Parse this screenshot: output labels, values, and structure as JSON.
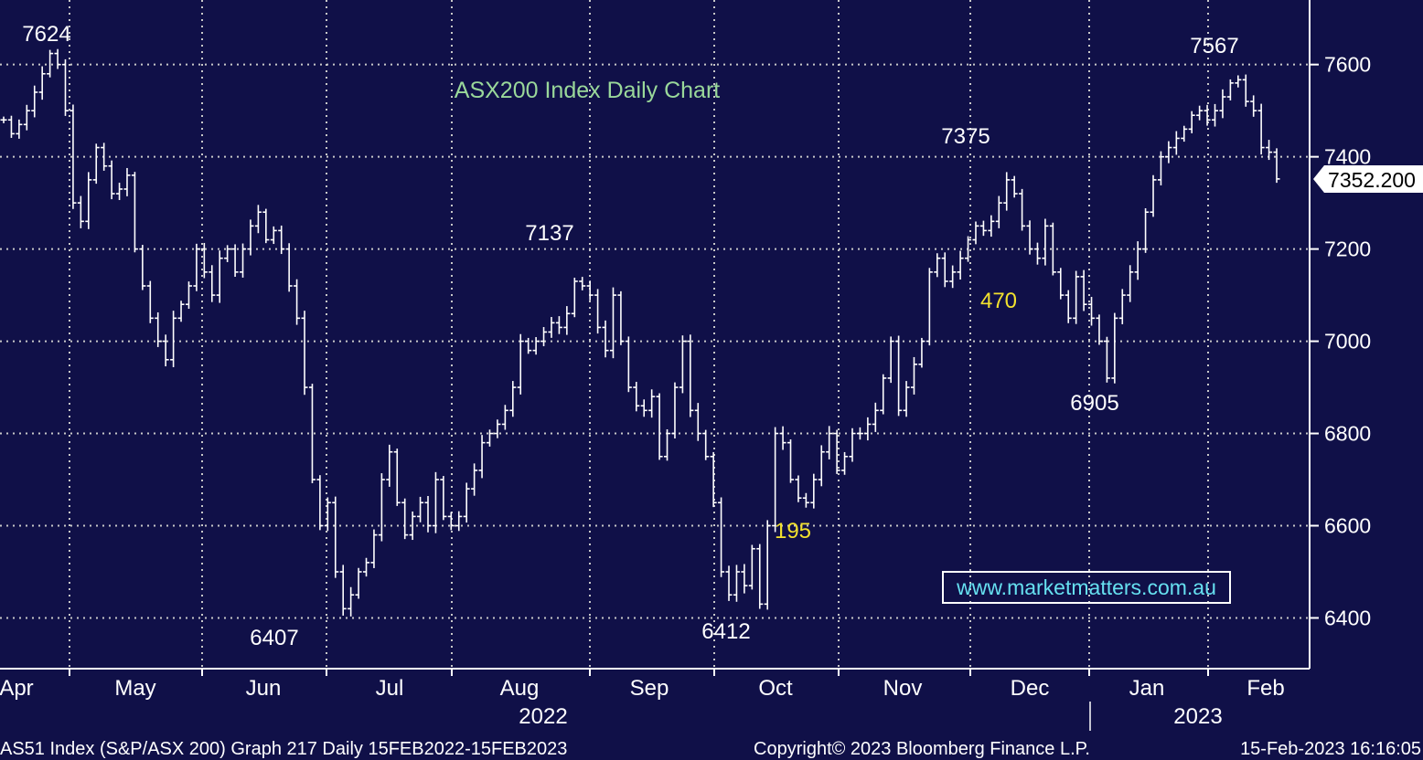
{
  "chart_data": {
    "type": "bar",
    "subtype": "ohlc",
    "title": "ASX200 Index Daily Chart",
    "y_axis": {
      "side": "right",
      "ticks": [
        6400,
        6600,
        6800,
        7000,
        7200,
        7400,
        7600
      ],
      "range": [
        6290,
        7740
      ]
    },
    "x_axis": {
      "months": [
        "Apr",
        "May",
        "Jun",
        "Jul",
        "Aug",
        "Sep",
        "Oct",
        "Nov",
        "Dec",
        "Jan",
        "Feb"
      ],
      "years": [
        "2022",
        "2023"
      ]
    },
    "last_price": "7352.200",
    "annotations": [
      {
        "text": "7624",
        "kind": "peak"
      },
      {
        "text": "6407",
        "kind": "trough"
      },
      {
        "text": "7137",
        "kind": "peak"
      },
      {
        "text": "6412",
        "kind": "trough"
      },
      {
        "text": "195",
        "kind": "move"
      },
      {
        "text": "7375",
        "kind": "peak"
      },
      {
        "text": "470",
        "kind": "move"
      },
      {
        "text": "6905",
        "kind": "trough"
      },
      {
        "text": "7567",
        "kind": "peak"
      }
    ],
    "grid": true,
    "series_color": "#ffffff",
    "closes": [
      7480,
      7450,
      7470,
      7500,
      7540,
      7580,
      7624,
      7600,
      7500,
      7300,
      7260,
      7350,
      7420,
      7380,
      7320,
      7330,
      7360,
      7200,
      7120,
      7050,
      7000,
      6960,
      7050,
      7080,
      7120,
      7200,
      7150,
      7100,
      7180,
      7200,
      7150,
      7200,
      7250,
      7280,
      7220,
      7240,
      7200,
      7120,
      7050,
      6900,
      6700,
      6600,
      6650,
      6500,
      6420,
      6450,
      6500,
      6520,
      6580,
      6700,
      6760,
      6650,
      6580,
      6620,
      6650,
      6600,
      6700,
      6620,
      6600,
      6620,
      6680,
      6720,
      6780,
      6800,
      6820,
      6850,
      6900,
      7000,
      6980,
      7000,
      7020,
      7040,
      7030,
      7060,
      7130,
      7120,
      7100,
      7030,
      6980,
      7100,
      7000,
      6900,
      6860,
      6850,
      6880,
      6750,
      6800,
      6900,
      7000,
      6850,
      6800,
      6750,
      6650,
      6500,
      6450,
      6500,
      6470,
      6550,
      6430,
      6600,
      6800,
      6780,
      6700,
      6660,
      6650,
      6700,
      6760,
      6800,
      6720,
      6750,
      6800,
      6800,
      6820,
      6850,
      6920,
      7000,
      6850,
      6900,
      6950,
      7000,
      7150,
      7180,
      7130,
      7150,
      7180,
      7220,
      7250,
      7240,
      7260,
      7300,
      7350,
      7320,
      7250,
      7200,
      7180,
      7250,
      7150,
      7100,
      7050,
      7140,
      7080,
      7050,
      7000,
      6920,
      7050,
      7100,
      7150,
      7200,
      7280,
      7350,
      7400,
      7420,
      7440,
      7460,
      7490,
      7500,
      7480,
      7500,
      7530,
      7560,
      7567,
      7520,
      7500,
      7420,
      7410,
      7352
    ]
  },
  "footer": {
    "left": "AS51 Index (S&P/ASX 200) Graph 217  Daily 15FEB2022-15FEB2023",
    "center": "Copyright© 2023 Bloomberg Finance L.P.",
    "right": "15-Feb-2023 16:16:05"
  },
  "watermark": "www.marketmatters.com.au",
  "colors": {
    "background": "#101048",
    "grid": "#c8c8c8",
    "title": "#9ad89a",
    "annotation_move": "#f2e12e",
    "watermark": "#66e0f0"
  }
}
